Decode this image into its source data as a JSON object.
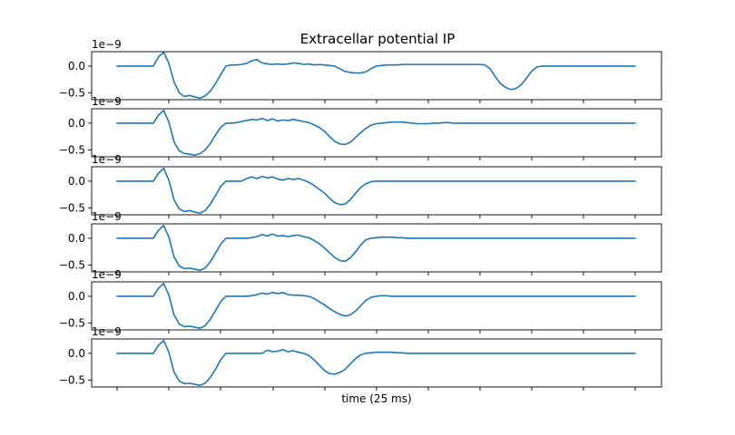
{
  "chart_data": {
    "type": "line",
    "title": "Extracellar potential IP",
    "xlabel": "time (25 ms)",
    "series_color": "#1f77b4",
    "panels": [
      {
        "ylabel": "",
        "y_offset_text": "1e−9",
        "yticks": [
          0.0,
          -0.5
        ],
        "ytick_labels": [
          "0.0",
          "−0.5"
        ],
        "ylim": [
          -0.63,
          0.27
        ],
        "x": [
          0,
          1,
          2,
          3,
          4,
          5,
          6,
          7,
          8,
          9,
          10,
          11,
          12,
          13,
          14,
          15,
          16,
          17,
          18,
          19,
          20,
          21,
          22,
          23,
          24,
          25,
          26,
          27,
          28,
          29,
          30,
          31,
          32,
          33,
          34,
          35,
          36,
          37,
          38,
          39,
          40,
          41,
          42,
          43,
          44,
          45,
          46,
          47,
          48,
          49,
          50,
          51,
          52,
          53,
          54,
          55,
          56,
          57,
          58,
          59,
          60,
          61,
          62,
          63,
          64,
          65,
          66,
          67,
          68,
          69,
          70,
          71,
          72,
          73,
          74,
          75,
          76,
          77,
          78,
          79,
          80,
          81,
          82,
          83,
          84,
          85,
          86,
          87,
          88,
          89,
          90,
          91,
          92,
          93,
          94,
          95,
          96,
          97,
          98,
          99,
          100
        ],
        "values": [
          0,
          0,
          0,
          0,
          0,
          0,
          0,
          0,
          0.17,
          0.26,
          0.05,
          -0.3,
          -0.5,
          -0.57,
          -0.55,
          -0.58,
          -0.6,
          -0.56,
          -0.47,
          -0.33,
          -0.16,
          0.0,
          0.02,
          0.02,
          0.03,
          0.05,
          0.1,
          0.12,
          0.06,
          0.04,
          0.03,
          0.04,
          0.03,
          0.04,
          0.06,
          0.05,
          0.03,
          0.04,
          0.02,
          0.03,
          0.02,
          0.01,
          0.0,
          -0.05,
          -0.1,
          -0.12,
          -0.13,
          -0.13,
          -0.11,
          -0.05,
          0.0,
          0.01,
          0.02,
          0.02,
          0.02,
          0.03,
          0.03,
          0.03,
          0.03,
          0.03,
          0.03,
          0.03,
          0.03,
          0.03,
          0.03,
          0.03,
          0.03,
          0.03,
          0.03,
          0.03,
          0.03,
          0.02,
          -0.05,
          -0.2,
          -0.33,
          -0.4,
          -0.44,
          -0.42,
          -0.35,
          -0.23,
          -0.1,
          -0.02,
          0.0,
          0,
          0,
          0,
          0,
          0,
          0,
          0,
          0,
          0,
          0,
          0,
          0,
          0,
          0,
          0,
          0,
          0,
          0
        ]
      },
      {
        "ylabel": "",
        "y_offset_text": "1e−9",
        "yticks": [
          0.0,
          -0.5
        ],
        "ytick_labels": [
          "0.0",
          "−0.5"
        ],
        "ylim": [
          -0.63,
          0.27
        ],
        "x": [
          0,
          1,
          2,
          3,
          4,
          5,
          6,
          7,
          8,
          9,
          10,
          11,
          12,
          13,
          14,
          15,
          16,
          17,
          18,
          19,
          20,
          21,
          22,
          23,
          24,
          25,
          26,
          27,
          28,
          29,
          30,
          31,
          32,
          33,
          34,
          35,
          36,
          37,
          38,
          39,
          40,
          41,
          42,
          43,
          44,
          45,
          46,
          47,
          48,
          49,
          50,
          51,
          52,
          53,
          54,
          55,
          56,
          57,
          58,
          59,
          60,
          61,
          62,
          63,
          64,
          65,
          66,
          67,
          68,
          69,
          70,
          71,
          72,
          73,
          74,
          75,
          76,
          77,
          78,
          79,
          80,
          81,
          82,
          83,
          84,
          85,
          86,
          87,
          88,
          89,
          90,
          91,
          92,
          93,
          94,
          95,
          96,
          97,
          98,
          99,
          100
        ],
        "values": [
          0,
          0,
          0,
          0,
          0,
          0,
          0,
          0,
          0.15,
          0.24,
          0.02,
          -0.35,
          -0.52,
          -0.57,
          -0.58,
          -0.6,
          -0.57,
          -0.5,
          -0.38,
          -0.22,
          -0.08,
          0.0,
          0.0,
          0.01,
          0.03,
          0.05,
          0.07,
          0.06,
          0.09,
          0.05,
          0.08,
          0.04,
          0.06,
          0.05,
          0.07,
          0.05,
          0.03,
          0.01,
          -0.03,
          -0.08,
          -0.15,
          -0.25,
          -0.34,
          -0.39,
          -0.4,
          -0.36,
          -0.27,
          -0.18,
          -0.1,
          -0.04,
          -0.01,
          0.0,
          0.01,
          0.02,
          0.02,
          0.02,
          0.01,
          0.0,
          -0.01,
          -0.01,
          -0.01,
          0.0,
          0.0,
          0.01,
          0.01,
          0.0,
          0.0,
          0.0,
          0.0,
          0,
          0,
          0,
          0,
          0,
          0,
          0,
          0,
          0,
          0,
          0,
          0,
          0,
          0,
          0,
          0,
          0,
          0,
          0,
          0,
          0,
          0,
          0,
          0,
          0,
          0,
          0,
          0,
          0,
          0,
          0,
          0
        ]
      },
      {
        "ylabel": "",
        "y_offset_text": "1e−9",
        "yticks": [
          0.0,
          -0.5
        ],
        "ytick_labels": [
          "0.0",
          "−0.5"
        ],
        "ylim": [
          -0.63,
          0.27
        ],
        "x": [
          0,
          1,
          2,
          3,
          4,
          5,
          6,
          7,
          8,
          9,
          10,
          11,
          12,
          13,
          14,
          15,
          16,
          17,
          18,
          19,
          20,
          21,
          22,
          23,
          24,
          25,
          26,
          27,
          28,
          29,
          30,
          31,
          32,
          33,
          34,
          35,
          36,
          37,
          38,
          39,
          40,
          41,
          42,
          43,
          44,
          45,
          46,
          47,
          48,
          49,
          50,
          51,
          52,
          53,
          54,
          55,
          56,
          57,
          58,
          59,
          60,
          61,
          62,
          63,
          64,
          65,
          66,
          67,
          68,
          69,
          70,
          71,
          72,
          73,
          74,
          75,
          76,
          77,
          78,
          79,
          80,
          81,
          82,
          83,
          84,
          85,
          86,
          87,
          88,
          89,
          90,
          91,
          92,
          93,
          94,
          95,
          96,
          97,
          98,
          99,
          100
        ],
        "values": [
          0,
          0,
          0,
          0,
          0,
          0,
          0,
          0,
          0.15,
          0.24,
          0.02,
          -0.35,
          -0.52,
          -0.57,
          -0.55,
          -0.58,
          -0.6,
          -0.55,
          -0.43,
          -0.27,
          -0.1,
          0.0,
          0.0,
          0.0,
          0.0,
          0.05,
          0.08,
          0.05,
          0.09,
          0.06,
          0.08,
          0.04,
          0.02,
          0.05,
          0.03,
          0.05,
          0.02,
          -0.02,
          -0.08,
          -0.15,
          -0.22,
          -0.32,
          -0.4,
          -0.44,
          -0.43,
          -0.35,
          -0.23,
          -0.12,
          -0.05,
          -0.01,
          0.0,
          0,
          0,
          0,
          0,
          0,
          0,
          0,
          0,
          0,
          0,
          0,
          0,
          0,
          0,
          0,
          0,
          0,
          0,
          0,
          0,
          0,
          0,
          0,
          0,
          0,
          0,
          0,
          0,
          0,
          0,
          0,
          0,
          0,
          0,
          0,
          0,
          0,
          0,
          0,
          0,
          0,
          0,
          0,
          0,
          0,
          0,
          0,
          0,
          0,
          0
        ]
      },
      {
        "ylabel": "",
        "y_offset_text": "1e−9",
        "yticks": [
          0.0,
          -0.5
        ],
        "ytick_labels": [
          "0.0",
          "−0.5"
        ],
        "ylim": [
          -0.63,
          0.27
        ],
        "x": [
          0,
          1,
          2,
          3,
          4,
          5,
          6,
          7,
          8,
          9,
          10,
          11,
          12,
          13,
          14,
          15,
          16,
          17,
          18,
          19,
          20,
          21,
          22,
          23,
          24,
          25,
          26,
          27,
          28,
          29,
          30,
          31,
          32,
          33,
          34,
          35,
          36,
          37,
          38,
          39,
          40,
          41,
          42,
          43,
          44,
          45,
          46,
          47,
          48,
          49,
          50,
          51,
          52,
          53,
          54,
          55,
          56,
          57,
          58,
          59,
          60,
          61,
          62,
          63,
          64,
          65,
          66,
          67,
          68,
          69,
          70,
          71,
          72,
          73,
          74,
          75,
          76,
          77,
          78,
          79,
          80,
          81,
          82,
          83,
          84,
          85,
          86,
          87,
          88,
          89,
          90,
          91,
          92,
          93,
          94,
          95,
          96,
          97,
          98,
          99,
          100
        ],
        "values": [
          0,
          0,
          0,
          0,
          0,
          0,
          0,
          0,
          0.15,
          0.24,
          0.02,
          -0.35,
          -0.52,
          -0.57,
          -0.56,
          -0.58,
          -0.6,
          -0.56,
          -0.44,
          -0.28,
          -0.11,
          0.0,
          0.0,
          0.0,
          0.0,
          0.0,
          0.01,
          0.03,
          0.07,
          0.04,
          0.08,
          0.04,
          0.05,
          0.03,
          0.05,
          0.06,
          0.03,
          0.01,
          -0.04,
          -0.1,
          -0.18,
          -0.27,
          -0.36,
          -0.42,
          -0.43,
          -0.37,
          -0.26,
          -0.13,
          -0.03,
          0.0,
          0.01,
          0.02,
          0.02,
          0.02,
          0.01,
          0.01,
          0.0,
          0.0,
          0.0,
          0.0,
          0,
          0,
          0,
          0,
          0,
          0,
          0,
          0,
          0,
          0,
          0,
          0,
          0,
          0,
          0,
          0,
          0,
          0,
          0,
          0,
          0,
          0,
          0,
          0,
          0,
          0,
          0,
          0,
          0,
          0,
          0,
          0,
          0,
          0,
          0,
          0,
          0,
          0,
          0,
          0,
          0
        ]
      },
      {
        "ylabel": "",
        "y_offset_text": "1e−9",
        "yticks": [
          0.0,
          -0.5
        ],
        "ytick_labels": [
          "0.0",
          "−0.5"
        ],
        "ylim": [
          -0.63,
          0.27
        ],
        "x": [
          0,
          1,
          2,
          3,
          4,
          5,
          6,
          7,
          8,
          9,
          10,
          11,
          12,
          13,
          14,
          15,
          16,
          17,
          18,
          19,
          20,
          21,
          22,
          23,
          24,
          25,
          26,
          27,
          28,
          29,
          30,
          31,
          32,
          33,
          34,
          35,
          36,
          37,
          38,
          39,
          40,
          41,
          42,
          43,
          44,
          45,
          46,
          47,
          48,
          49,
          50,
          51,
          52,
          53,
          54,
          55,
          56,
          57,
          58,
          59,
          60,
          61,
          62,
          63,
          64,
          65,
          66,
          67,
          68,
          69,
          70,
          71,
          72,
          73,
          74,
          75,
          76,
          77,
          78,
          79,
          80,
          81,
          82,
          83,
          84,
          85,
          86,
          87,
          88,
          89,
          90,
          91,
          92,
          93,
          94,
          95,
          96,
          97,
          98,
          99,
          100
        ],
        "values": [
          0,
          0,
          0,
          0,
          0,
          0,
          0,
          0,
          0.15,
          0.24,
          0.02,
          -0.35,
          -0.52,
          -0.57,
          -0.56,
          -0.58,
          -0.6,
          -0.55,
          -0.43,
          -0.27,
          -0.1,
          0.0,
          0.0,
          0.0,
          0.0,
          0.0,
          0.01,
          0.03,
          0.06,
          0.04,
          0.07,
          0.05,
          0.07,
          0.03,
          0.02,
          0.02,
          0.01,
          0.0,
          -0.04,
          -0.1,
          -0.16,
          -0.23,
          -0.29,
          -0.34,
          -0.37,
          -0.35,
          -0.28,
          -0.18,
          -0.08,
          -0.02,
          0.0,
          0.01,
          0.01,
          0.0,
          0.0,
          0.0,
          0.0,
          0,
          0,
          0,
          0,
          0,
          0,
          0,
          0,
          0,
          0,
          0,
          0,
          0,
          0,
          0,
          0,
          0,
          0,
          0,
          0,
          0,
          0,
          0,
          0,
          0,
          0,
          0,
          0,
          0,
          0,
          0,
          0,
          0,
          0,
          0,
          0,
          0,
          0,
          0,
          0,
          0,
          0,
          0,
          0
        ]
      },
      {
        "ylabel": "",
        "y_offset_text": "1e−9",
        "yticks": [
          0.0,
          -0.5
        ],
        "ytick_labels": [
          "0.0",
          "−0.5"
        ],
        "ylim": [
          -0.63,
          0.27
        ],
        "x": [
          0,
          1,
          2,
          3,
          4,
          5,
          6,
          7,
          8,
          9,
          10,
          11,
          12,
          13,
          14,
          15,
          16,
          17,
          18,
          19,
          20,
          21,
          22,
          23,
          24,
          25,
          26,
          27,
          28,
          29,
          30,
          31,
          32,
          33,
          34,
          35,
          36,
          37,
          38,
          39,
          40,
          41,
          42,
          43,
          44,
          45,
          46,
          47,
          48,
          49,
          50,
          51,
          52,
          53,
          54,
          55,
          56,
          57,
          58,
          59,
          60,
          61,
          62,
          63,
          64,
          65,
          66,
          67,
          68,
          69,
          70,
          71,
          72,
          73,
          74,
          75,
          76,
          77,
          78,
          79,
          80,
          81,
          82,
          83,
          84,
          85,
          86,
          87,
          88,
          89,
          90,
          91,
          92,
          93,
          94,
          95,
          96,
          97,
          98,
          99,
          100
        ],
        "values": [
          0,
          0,
          0,
          0,
          0,
          0,
          0,
          0,
          0.15,
          0.24,
          0.02,
          -0.35,
          -0.52,
          -0.57,
          -0.56,
          -0.58,
          -0.6,
          -0.56,
          -0.45,
          -0.3,
          -0.12,
          0.0,
          0.0,
          0.0,
          0.0,
          0.0,
          0.0,
          0.0,
          0.0,
          0.06,
          0.03,
          0.04,
          0.07,
          0.03,
          0.05,
          0.02,
          0.0,
          -0.04,
          -0.12,
          -0.22,
          -0.32,
          -0.38,
          -0.39,
          -0.36,
          -0.3,
          -0.2,
          -0.1,
          -0.03,
          0.0,
          0.01,
          0.02,
          0.02,
          0.02,
          0.02,
          0.01,
          0.01,
          0.0,
          0.0,
          0,
          0,
          0,
          0,
          0,
          0,
          0,
          0,
          0,
          0,
          0,
          0,
          0,
          0,
          0,
          0,
          0,
          0,
          0,
          0,
          0,
          0,
          0,
          0,
          0,
          0,
          0,
          0,
          0,
          0,
          0,
          0,
          0,
          0,
          0,
          0,
          0,
          0,
          0,
          0,
          0,
          0,
          0
        ]
      }
    ],
    "grid": false,
    "legend": "none"
  }
}
